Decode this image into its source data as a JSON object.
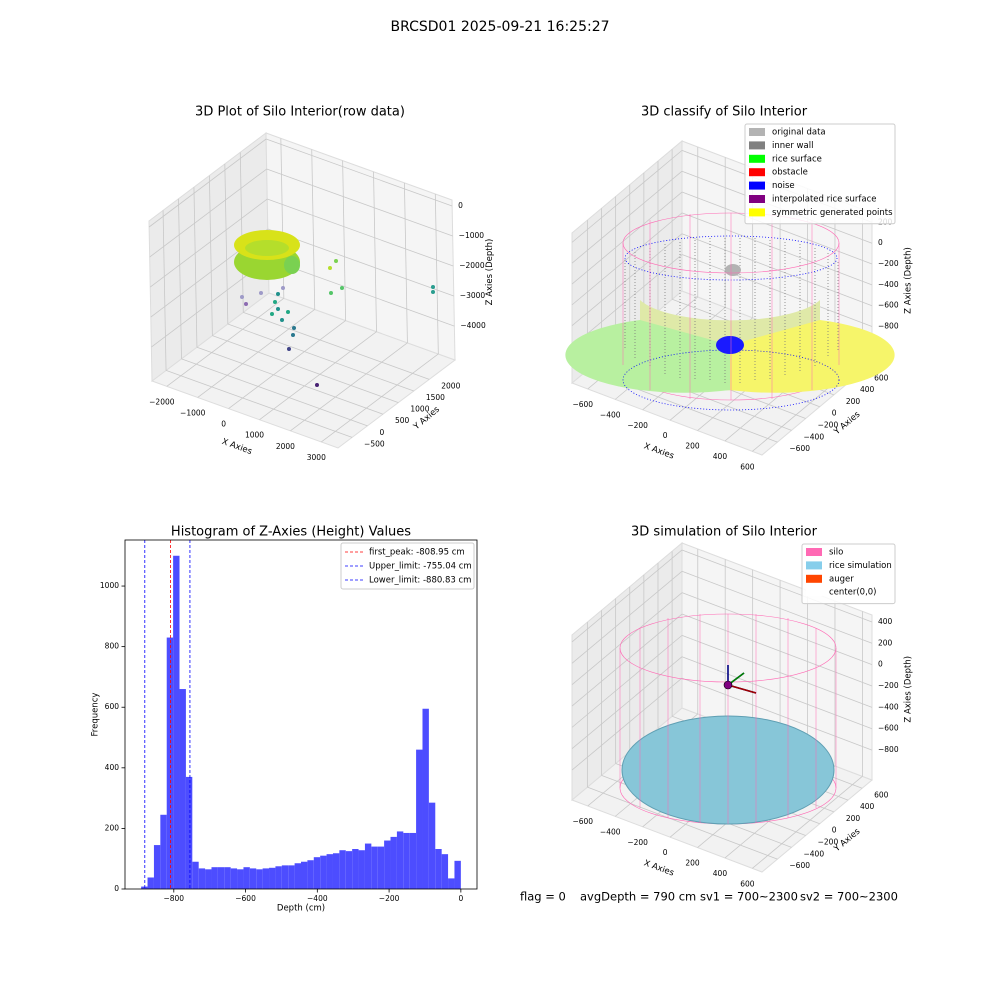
{
  "title": "BRCSD01 2025-09-21 16:25:27",
  "chart_data": [
    {
      "type": "scatter3d",
      "title": "3D Plot of Silo Interior(row data)",
      "xlabel": "X Axies",
      "ylabel": "Y Axies",
      "zlabel": "Z Axies (Depth)",
      "xlim": [
        -2480,
        3540
      ],
      "ylim": [
        -955,
        2833
      ],
      "zlim": [
        -5130,
        200
      ],
      "xticks": [
        {
          "value": -2000,
          "label": "−2000"
        },
        {
          "value": -1000,
          "label": "−1000"
        },
        0,
        1000,
        2000,
        3000
      ],
      "yticks": [
        {
          "value": -500,
          "label": "−500"
        },
        0,
        500,
        1000,
        1500,
        2000
      ],
      "zticks": [
        {
          "value": -4000,
          "label": "−4000"
        },
        {
          "value": -3000,
          "label": "−3000"
        },
        {
          "value": -2000,
          "label": "−2000"
        },
        {
          "value": -1000,
          "label": "−1000"
        },
        0
      ]
    },
    {
      "type": "scatter3d",
      "title": "3D classify of Silo Interior",
      "xlabel": "X Axies",
      "ylabel": "Y Axies",
      "zlabel": "Z Axies (Depth)",
      "xlim": [
        -715,
        670
      ],
      "ylim": [
        -818,
        740
      ],
      "zlim": [
        -1150,
        290
      ],
      "xticks": [
        {
          "value": -600,
          "label": "−600"
        },
        {
          "value": -400,
          "label": "−400"
        },
        {
          "value": -200,
          "label": "−200"
        },
        0,
        200,
        400,
        600
      ],
      "yticks": [
        {
          "value": -600,
          "label": "−600"
        },
        {
          "value": -400,
          "label": "−400"
        },
        {
          "value": -200,
          "label": "−200"
        },
        0,
        200,
        400,
        600
      ],
      "zticks": [
        {
          "value": -800,
          "label": "−800"
        },
        {
          "value": -600,
          "label": "−600"
        },
        {
          "value": -400,
          "label": "−400"
        },
        {
          "value": -200,
          "label": "−200"
        },
        0,
        200
      ],
      "legend": [
        {
          "name": "original data",
          "color": "#b3b3b3"
        },
        {
          "name": "inner wall",
          "color": "#808080"
        },
        {
          "name": "rice surface",
          "color": "#00ff00"
        },
        {
          "name": "obstacle",
          "color": "#ff0000"
        },
        {
          "name": "noise",
          "color": "#0000ff"
        },
        {
          "name": "interpolated rice surface",
          "color": "#800080"
        },
        {
          "name": "symmetric generated points",
          "color": "#ffff00"
        }
      ]
    },
    {
      "type": "histogram",
      "title": "Histogram of Z-Axies (Height) Values",
      "xlabel": "Depth (cm)",
      "ylabel": "Frequency",
      "color": "#4d4dff",
      "bins": [
        -891,
        -873.18,
        -855.36,
        -837.54,
        -819.72,
        -801.9,
        -784.08,
        -766.26,
        -748.44,
        -730.62,
        -712.8,
        -694.98,
        -677.16,
        -659.34,
        -641.52,
        -623.7,
        -605.88,
        -588.06,
        -570.24,
        -552.42,
        -534.6,
        -516.78,
        -498.96,
        -481.14,
        -463.32,
        -445.5,
        -427.68,
        -409.86,
        -392.04,
        -374.22,
        -356.4,
        -338.58,
        -320.76,
        -302.94,
        -285.12,
        -267.3,
        -249.48,
        -231.66,
        -213.84,
        -196.02,
        -178.2,
        -160.38,
        -142.56,
        -124.74,
        -106.92,
        -89.1,
        -71.28,
        -53.46,
        -35.64,
        -17.82,
        0
      ],
      "counts": [
        8,
        38,
        145,
        245,
        830,
        1100,
        660,
        370,
        90,
        68,
        65,
        72,
        72,
        72,
        68,
        65,
        72,
        68,
        65,
        68,
        70,
        75,
        78,
        78,
        85,
        90,
        95,
        105,
        110,
        115,
        118,
        128,
        125,
        132,
        128,
        150,
        140,
        140,
        160,
        172,
        190,
        185,
        185,
        460,
        595,
        285,
        132,
        115,
        35,
        93
      ],
      "xlim": [
        -936,
        45
      ],
      "ylim": [
        0,
        1152
      ],
      "xticks": [
        {
          "value": -800,
          "label": "−800"
        },
        {
          "value": -600,
          "label": "−600"
        },
        {
          "value": -400,
          "label": "−400"
        },
        {
          "value": -200,
          "label": "−200"
        },
        0
      ],
      "yticks": [
        0,
        200,
        400,
        600,
        800,
        1000
      ],
      "lines": [
        {
          "label": "first_peak: -808.95 cm",
          "value": -808.95,
          "color": "#ff0000"
        },
        {
          "label": "Upper_limit: -755.04 cm",
          "value": -755.04,
          "color": "#0000ff"
        },
        {
          "label": "Lower_limit: -880.83 cm",
          "value": -880.83,
          "color": "#0000ff"
        }
      ],
      "legend_position": "upper right"
    },
    {
      "type": "scatter3d",
      "title": "3D simulation of Silo Interior",
      "xlabel": "X Axies",
      "ylabel": "Y Axies",
      "zlabel": "Z Axies (Depth)",
      "xlim": [
        -715,
        670
      ],
      "ylim": [
        -818,
        740
      ],
      "zlim": [
        -1080,
        465
      ],
      "xticks": [
        {
          "value": -600,
          "label": "−600"
        },
        {
          "value": -400,
          "label": "−400"
        },
        {
          "value": -200,
          "label": "−200"
        },
        0,
        200,
        400,
        600
      ],
      "yticks": [
        {
          "value": -600,
          "label": "−600"
        },
        {
          "value": -400,
          "label": "−400"
        },
        {
          "value": -200,
          "label": "−200"
        },
        0,
        200,
        400,
        600
      ],
      "zticks": [
        {
          "value": -800,
          "label": "−800"
        },
        {
          "value": -600,
          "label": "−600"
        },
        {
          "value": -400,
          "label": "−400"
        },
        {
          "value": -200,
          "label": "−200"
        },
        0,
        200,
        400
      ],
      "legend": [
        {
          "name": "silo",
          "color": "#ff69b4"
        },
        {
          "name": "rice simulation",
          "color": "#87ceeb"
        },
        {
          "name": "auger",
          "color": "#ff4500"
        },
        {
          "name": "center(0,0)",
          "color": "#ffffff"
        }
      ]
    }
  ],
  "footer": [
    "flag = 0",
    "avgDepth = 790 cm",
    "sv1 = 700~2300",
    "sv2 = 700~2300"
  ]
}
